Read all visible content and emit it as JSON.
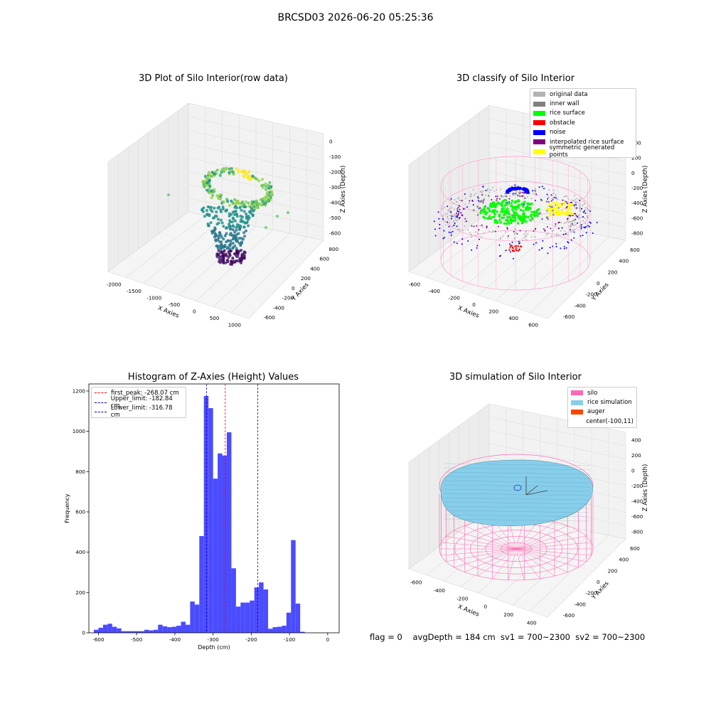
{
  "figure": {
    "title": "BRCSD03 2026-06-20 05:25:36"
  },
  "chart_data": [
    {
      "type": "scatter",
      "title": "3D Plot of Silo Interior(row data)",
      "xlabel": "X Axies",
      "ylabel": "Y Axies",
      "zlabel": "Z Axies (Depth)",
      "x_ticks": [
        "-2000",
        "-1500",
        "-1000",
        "-500",
        "0",
        "500",
        "1000"
      ],
      "y_ticks": [
        "-600",
        "-400",
        "-200",
        "0",
        "200",
        "400",
        "600",
        "800"
      ],
      "z_ticks": [
        "-600",
        "-500",
        "-400",
        "-300",
        "-200",
        "-100",
        "0"
      ],
      "colormap": "viridis"
    },
    {
      "type": "scatter",
      "title": "3D classify of Silo Interior",
      "xlabel": "X Axies",
      "ylabel": "Y Axies",
      "zlabel": "Z Axies (Depth)",
      "x_ticks": [
        "-600",
        "-400",
        "-200",
        "0",
        "200",
        "400",
        "600"
      ],
      "y_ticks": [
        "-600",
        "-400",
        "-200",
        "0",
        "200",
        "400",
        "600"
      ],
      "z_ticks": [
        "-800",
        "-600",
        "-400",
        "-200",
        "0",
        "200",
        "400"
      ],
      "legend": [
        {
          "label": "original data",
          "color": "#b3b3b3"
        },
        {
          "label": "inner wall",
          "color": "#808080"
        },
        {
          "label": "rice surface",
          "color": "#00ff00"
        },
        {
          "label": "obstacle",
          "color": "#ff0000"
        },
        {
          "label": "noise",
          "color": "#0000ff"
        },
        {
          "label": "interpolated rice surface",
          "color": "#800080"
        },
        {
          "label": "symmetric generated points",
          "color": "#ffff00"
        }
      ]
    },
    {
      "type": "bar",
      "title": "Histogram of Z-Axies (Height) Values",
      "xlabel": "Depth (cm)",
      "ylabel": "Frequency",
      "xlim": [
        -625,
        30
      ],
      "ylim": [
        0,
        1235
      ],
      "x_ticks": [
        -600,
        -500,
        -400,
        -300,
        -200,
        -100,
        0
      ],
      "y_ticks": [
        0,
        200,
        400,
        600,
        800,
        1000,
        1200
      ],
      "bin_start": -612,
      "bin_width": 12,
      "bar_color": "#4b4bff",
      "values": [
        15,
        25,
        40,
        45,
        30,
        22,
        8,
        8,
        8,
        8,
        8,
        15,
        12,
        15,
        40,
        32,
        28,
        30,
        35,
        55,
        40,
        155,
        140,
        480,
        1175,
        1115,
        765,
        890,
        880,
        995,
        320,
        130,
        150,
        150,
        160,
        225,
        250,
        215,
        20,
        28,
        30,
        35,
        100,
        460,
        145,
        5
      ],
      "vlines": [
        {
          "label": "first_peak: -268.07 cm",
          "x": -268.07,
          "color": "#ff0000"
        },
        {
          "label": "Upper_limit: -182.84 cm",
          "x": -182.84,
          "color": "#0000cd"
        },
        {
          "label": "Lower_limit: -316.78 cm",
          "x": -316.78,
          "color": "#0000cd"
        }
      ]
    },
    {
      "type": "surface",
      "title": "3D simulation of Silo Interior",
      "xlabel": "X Axies",
      "ylabel": "Y Axies",
      "zlabel": "Z Axies (Depth)",
      "x_ticks": [
        "-600",
        "-400",
        "-200",
        "0",
        "200",
        "400"
      ],
      "y_ticks": [
        "-600",
        "-400",
        "-200",
        "0",
        "200",
        "400",
        "600"
      ],
      "z_ticks": [
        "-800",
        "-600",
        "-400",
        "-200",
        "0",
        "200",
        "400"
      ],
      "legend": [
        {
          "label": "silo",
          "color": "#ff69b4"
        },
        {
          "label": "rice simulation",
          "color": "#87ceeb"
        },
        {
          "label": "auger",
          "color": "#ff4500"
        },
        {
          "label": "center(-100,11)",
          "color": ""
        }
      ]
    }
  ],
  "footer": "flag = 0    avgDepth = 184 cm  sv1 = 700~2300  sv2 = 700~2300"
}
